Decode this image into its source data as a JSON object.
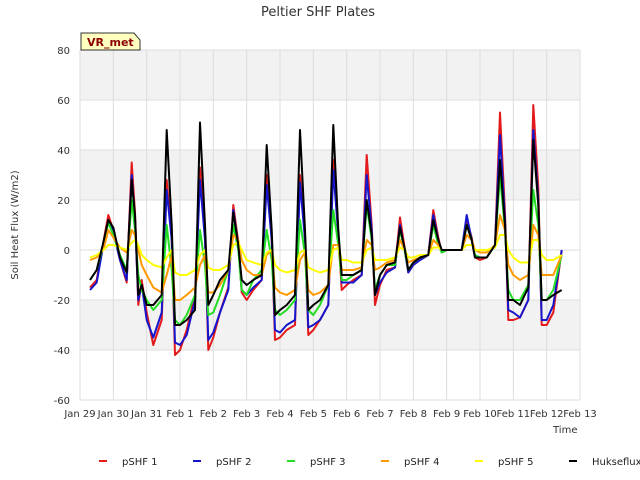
{
  "chart_data": {
    "type": "line",
    "title": "Peltier SHF Plates",
    "xlabel": "Time",
    "ylabel": "Soil Heat Flux (W/m2)",
    "badge": "VR_met",
    "ylim": [
      -60,
      80
    ],
    "yticks": [
      -60,
      -40,
      -20,
      0,
      20,
      40,
      60,
      80
    ],
    "xlim": [
      0,
      15
    ],
    "xticks": [
      0,
      1,
      2,
      3,
      4,
      5,
      6,
      7,
      8,
      9,
      10,
      11,
      12,
      13,
      14,
      15
    ],
    "xtick_labels": [
      "Jan 29",
      "Jan 30",
      "Jan 31",
      "Feb 1",
      "Feb 2",
      "Feb 3",
      "Feb 4",
      "Feb 5",
      "Feb 6",
      "Feb 7",
      "Feb 8",
      "Feb 9",
      "Feb 10",
      "Feb 11",
      "Feb 12",
      "Feb 13"
    ],
    "grid": true,
    "shaded_bands": [
      [
        -40,
        -20
      ],
      [
        20,
        40
      ],
      [
        60,
        80
      ]
    ],
    "legend_position": "bottom",
    "x": [
      0.3,
      0.5,
      0.7,
      0.85,
      1.0,
      1.2,
      1.4,
      1.55,
      1.65,
      1.75,
      1.85,
      2.0,
      2.2,
      2.45,
      2.6,
      2.75,
      2.85,
      3.0,
      3.2,
      3.45,
      3.6,
      3.75,
      3.85,
      4.0,
      4.2,
      4.45,
      4.6,
      4.75,
      4.85,
      5.0,
      5.2,
      5.45,
      5.6,
      5.75,
      5.85,
      6.0,
      6.2,
      6.45,
      6.6,
      6.75,
      6.85,
      7.0,
      7.2,
      7.45,
      7.6,
      7.75,
      7.85,
      8.0,
      8.2,
      8.45,
      8.6,
      8.75,
      8.85,
      9.0,
      9.2,
      9.45,
      9.6,
      9.75,
      9.85,
      10.0,
      10.2,
      10.45,
      10.6,
      10.75,
      10.85,
      11.0,
      11.2,
      11.45,
      11.6,
      11.75,
      11.85,
      12.0,
      12.2,
      12.45,
      12.6,
      12.75,
      12.85,
      13.0,
      13.2,
      13.45,
      13.6,
      13.75,
      13.85,
      14.0,
      14.2,
      14.45
    ],
    "series": [
      {
        "name": "pSHF 1",
        "color": "#e31a1c",
        "values": [
          -15,
          -12,
          3,
          14,
          8,
          -4,
          -13,
          35,
          15,
          -22,
          -12,
          -25,
          -38,
          -28,
          28,
          5,
          -42,
          -40,
          -32,
          -18,
          33,
          5,
          -40,
          -35,
          -25,
          -15,
          18,
          3,
          -17,
          -20,
          -16,
          -12,
          30,
          5,
          -36,
          -35,
          -32,
          -30,
          30,
          5,
          -34,
          -32,
          -28,
          -22,
          36,
          7,
          -16,
          -14,
          -12,
          -10,
          38,
          10,
          -22,
          -14,
          -8,
          -7,
          13,
          0,
          -9,
          -6,
          -4,
          -2,
          16,
          5,
          -1,
          0,
          0,
          0,
          12,
          5,
          -3,
          -4,
          -3,
          2,
          55,
          15,
          -28,
          -28,
          -27,
          -20,
          58,
          25,
          -30,
          -30,
          -25,
          0
        ]
      },
      {
        "name": "pSHF 2",
        "color": "#1515cc",
        "values": [
          -16,
          -13,
          2,
          12,
          7,
          -4,
          -12,
          30,
          12,
          -20,
          -14,
          -28,
          -35,
          -25,
          24,
          4,
          -37,
          -38,
          -34,
          -20,
          28,
          4,
          -36,
          -33,
          -25,
          -16,
          16,
          2,
          -16,
          -18,
          -15,
          -12,
          26,
          4,
          -32,
          -33,
          -30,
          -28,
          27,
          4,
          -31,
          -30,
          -28,
          -22,
          32,
          6,
          -13,
          -13,
          -13,
          -10,
          30,
          8,
          -18,
          -13,
          -9,
          -7,
          10,
          -1,
          -9,
          -6,
          -4,
          -2,
          14,
          4,
          -1,
          0,
          0,
          0,
          14,
          4,
          -3,
          -3,
          -3,
          2,
          46,
          12,
          -24,
          -25,
          -27,
          -20,
          48,
          20,
          -28,
          -28,
          -22,
          0
        ]
      },
      {
        "name": "pSHF 3",
        "color": "#22dd22",
        "values": [
          -12,
          -8,
          2,
          11,
          6,
          -2,
          -8,
          20,
          8,
          -10,
          -16,
          -20,
          -24,
          -20,
          10,
          -8,
          -28,
          -30,
          -26,
          -18,
          8,
          -6,
          -26,
          -25,
          -18,
          -8,
          10,
          0,
          -16,
          -18,
          -12,
          -8,
          8,
          -4,
          -24,
          -26,
          -24,
          -20,
          12,
          -2,
          -24,
          -26,
          -22,
          -14,
          16,
          2,
          -12,
          -12,
          -10,
          -8,
          18,
          4,
          -16,
          -10,
          -6,
          -6,
          8,
          -1,
          -8,
          -5,
          -3,
          -2,
          10,
          2,
          -1,
          0,
          0,
          0,
          10,
          4,
          -2,
          -3,
          -3,
          2,
          30,
          8,
          -16,
          -20,
          -20,
          -14,
          24,
          10,
          -20,
          -20,
          -16,
          -2
        ]
      },
      {
        "name": "pSHF 4",
        "color": "#ff9900",
        "values": [
          -4,
          -3,
          0,
          8,
          5,
          1,
          -1,
          8,
          6,
          0,
          -6,
          -10,
          -15,
          -17,
          -10,
          -2,
          -20,
          -20,
          -18,
          -15,
          -6,
          -2,
          -17,
          -17,
          -14,
          -8,
          6,
          4,
          -4,
          -8,
          -10,
          -10,
          -2,
          0,
          -15,
          -17,
          -18,
          -16,
          -4,
          -1,
          -16,
          -18,
          -17,
          -14,
          2,
          2,
          -8,
          -8,
          -8,
          -7,
          4,
          2,
          -8,
          -7,
          -5,
          -4,
          4,
          0,
          -5,
          -4,
          -3,
          -2,
          4,
          2,
          0,
          0,
          0,
          0,
          6,
          4,
          0,
          -1,
          -1,
          2,
          14,
          8,
          -6,
          -10,
          -12,
          -10,
          10,
          6,
          -10,
          -10,
          -10,
          -2
        ]
      },
      {
        "name": "pSHF 5",
        "color": "#ffff00",
        "values": [
          -3,
          -2,
          0,
          2,
          2,
          1,
          0,
          3,
          4,
          2,
          -2,
          -4,
          -6,
          -7,
          -3,
          0,
          -9,
          -10,
          -10,
          -8,
          -2,
          0,
          -7,
          -8,
          -8,
          -6,
          2,
          3,
          0,
          -4,
          -5,
          -6,
          -1,
          0,
          -6,
          -8,
          -9,
          -8,
          -1,
          0,
          -7,
          -8,
          -9,
          -8,
          0,
          1,
          -4,
          -4,
          -5,
          -5,
          0,
          1,
          -4,
          -4,
          -4,
          -3,
          1,
          0,
          -3,
          -3,
          -2,
          -2,
          1,
          1,
          0,
          0,
          0,
          0,
          2,
          2,
          0,
          0,
          0,
          1,
          6,
          6,
          0,
          -3,
          -5,
          -5,
          4,
          4,
          -2,
          -4,
          -4,
          -2
        ]
      },
      {
        "name": "Hukseflux",
        "color": "#000000",
        "values": [
          -12,
          -8,
          3,
          12,
          9,
          -3,
          -9,
          28,
          14,
          -18,
          -14,
          -22,
          -22,
          -18,
          48,
          10,
          -30,
          -30,
          -28,
          -24,
          51,
          10,
          -22,
          -18,
          -12,
          -8,
          15,
          2,
          -12,
          -14,
          -12,
          -10,
          42,
          8,
          -26,
          -24,
          -22,
          -18,
          48,
          8,
          -24,
          -22,
          -20,
          -14,
          50,
          8,
          -10,
          -10,
          -10,
          -8,
          20,
          6,
          -18,
          -10,
          -6,
          -5,
          9,
          0,
          -8,
          -5,
          -3,
          -2,
          12,
          4,
          0,
          0,
          0,
          0,
          10,
          4,
          -3,
          -3,
          -3,
          2,
          36,
          10,
          -20,
          -20,
          -22,
          -15,
          44,
          18,
          -20,
          -20,
          -18,
          -16
        ]
      }
    ]
  }
}
